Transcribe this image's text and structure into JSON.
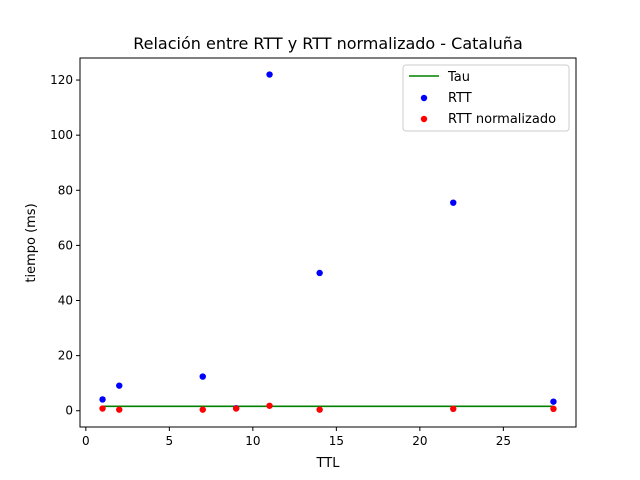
{
  "chart_data": {
    "type": "scatter",
    "title": "Relación entre RTT y RTT normalizado - Cataluña",
    "xlabel": "TTL",
    "ylabel": "tiempo (ms)",
    "xlim": [
      -0.35,
      29.35
    ],
    "ylim": [
      -5.9,
      128.0
    ],
    "xticks": [
      0,
      5,
      10,
      15,
      20,
      25
    ],
    "yticks": [
      0,
      20,
      40,
      60,
      80,
      100,
      120
    ],
    "grid": false,
    "legend_position": "top-right",
    "series": [
      {
        "name": "Tau",
        "kind": "line",
        "color": "#008000",
        "x": [
          1,
          28
        ],
        "y": [
          1.6,
          1.6
        ]
      },
      {
        "name": "RTT",
        "kind": "scatter",
        "color": "#0000ff",
        "x": [
          1,
          2,
          7,
          9,
          11,
          14,
          22,
          28
        ],
        "y": [
          4.1,
          9.1,
          12.4,
          0.9,
          122.0,
          50.0,
          75.5,
          3.3
        ]
      },
      {
        "name": "RTT normalizado",
        "kind": "scatter",
        "color": "#ff0000",
        "x": [
          1,
          2,
          7,
          9,
          11,
          14,
          22,
          28
        ],
        "y": [
          0.8,
          0.4,
          0.4,
          0.8,
          1.8,
          0.4,
          0.7,
          0.7
        ]
      }
    ]
  }
}
